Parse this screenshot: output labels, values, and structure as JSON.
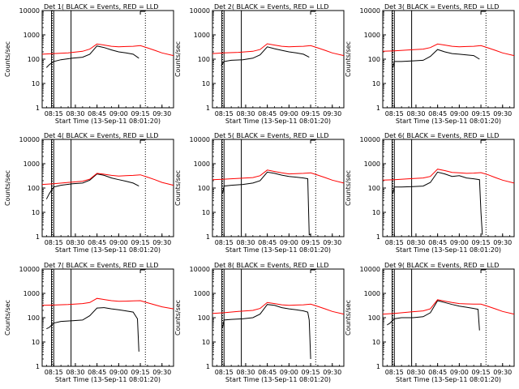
{
  "figure": {
    "ylabel": "Counts/sec",
    "xlabel": "Start Time (13-Sep-11 08:01:20)"
  },
  "colors": {
    "events": "#000000",
    "lld": "#ff0000",
    "axes": "#000000"
  },
  "chart_data": [
    {
      "type": "line",
      "title": "Det 1( BLACK = Events, RED = LLD",
      "xlabel": "Start Time (13-Sep-11 08:01:20)",
      "ylabel": "Counts/sec",
      "y_scale": "log",
      "ylim": [
        1,
        10000
      ],
      "xlim": [
        "08:07",
        "09:38"
      ],
      "x_ticks": [
        "08:15",
        "08:30",
        "08:45",
        "09:00",
        "09:15",
        "09:30"
      ],
      "y_ticks": [
        "1",
        "10",
        "100",
        "1000",
        "10000"
      ],
      "series": [
        {
          "name": "Events",
          "color": "#000000",
          "x": [
            "08:10",
            "08:12",
            "08:15",
            "08:20",
            "08:28",
            "08:35",
            "08:40",
            "08:45",
            "08:50",
            "08:55",
            "09:00",
            "09:05",
            "09:10",
            "09:14"
          ],
          "y": [
            45,
            60,
            80,
            95,
            110,
            120,
            160,
            350,
            300,
            240,
            200,
            180,
            160,
            110
          ]
        },
        {
          "name": "LLD",
          "color": "#ff0000",
          "x": [
            "08:07",
            "08:15",
            "08:25",
            "08:35",
            "08:40",
            "08:45",
            "08:50",
            "08:55",
            "09:00",
            "09:05",
            "09:10",
            "09:15",
            "09:20",
            "09:25",
            "09:30",
            "09:38"
          ],
          "y": [
            160,
            170,
            180,
            210,
            260,
            420,
            380,
            340,
            320,
            330,
            340,
            360,
            290,
            230,
            180,
            140
          ]
        }
      ]
    },
    {
      "type": "line",
      "title": "Det 2( BLACK = Events, RED = LLD",
      "xlabel": "Start Time (13-Sep-11 08:01:20)",
      "ylabel": "Counts/sec",
      "y_scale": "log",
      "ylim": [
        1,
        10000
      ],
      "xlim": [
        "08:07",
        "09:38"
      ],
      "x_ticks": [
        "08:15",
        "08:30",
        "08:45",
        "09:00",
        "09:15",
        "09:30"
      ],
      "y_ticks": [
        "1",
        "10",
        "100",
        "1000",
        "10000"
      ],
      "series": [
        {
          "name": "Events",
          "color": "#000000",
          "x": [
            "08:13",
            "08:15",
            "08:20",
            "08:28",
            "08:35",
            "08:40",
            "08:45",
            "08:50",
            "08:55",
            "09:00",
            "09:05",
            "09:10",
            "09:14"
          ],
          "y": [
            55,
            80,
            90,
            95,
            110,
            150,
            320,
            270,
            230,
            200,
            180,
            160,
            120
          ]
        },
        {
          "name": "LLD",
          "color": "#ff0000",
          "x": [
            "08:07",
            "08:15",
            "08:25",
            "08:35",
            "08:40",
            "08:45",
            "08:50",
            "08:55",
            "09:00",
            "09:05",
            "09:10",
            "09:15",
            "09:20",
            "09:25",
            "09:30",
            "09:38"
          ],
          "y": [
            170,
            180,
            190,
            210,
            250,
            430,
            380,
            340,
            320,
            330,
            340,
            360,
            290,
            230,
            180,
            140
          ]
        }
      ]
    },
    {
      "type": "line",
      "title": "Det 3( BLACK = Events, RED = LLD",
      "xlabel": "Start Time (13-Sep-11 08:01:20)",
      "ylabel": "Counts/sec",
      "y_scale": "log",
      "ylim": [
        1,
        10000
      ],
      "xlim": [
        "08:07",
        "09:38"
      ],
      "x_ticks": [
        "08:15",
        "08:30",
        "08:45",
        "09:00",
        "09:15",
        "09:30"
      ],
      "y_ticks": [
        "1",
        "10",
        "100",
        "1000",
        "10000"
      ],
      "series": [
        {
          "name": "Events",
          "color": "#000000",
          "x": [
            "08:14",
            "08:15",
            "08:20",
            "08:28",
            "08:35",
            "08:40",
            "08:45",
            "08:50",
            "08:55",
            "09:00",
            "09:05",
            "09:10",
            "09:14"
          ],
          "y": [
            45,
            80,
            80,
            85,
            90,
            130,
            250,
            200,
            170,
            160,
            150,
            140,
            100
          ]
        },
        {
          "name": "LLD",
          "color": "#ff0000",
          "x": [
            "08:07",
            "08:15",
            "08:25",
            "08:35",
            "08:40",
            "08:45",
            "08:50",
            "08:55",
            "09:00",
            "09:05",
            "09:10",
            "09:15",
            "09:20",
            "09:25",
            "09:30",
            "09:38"
          ],
          "y": [
            210,
            220,
            240,
            260,
            300,
            420,
            380,
            340,
            320,
            330,
            340,
            360,
            290,
            230,
            180,
            140
          ]
        }
      ]
    },
    {
      "type": "line",
      "title": "Det 4( BLACK = Events, RED = LLD",
      "xlabel": "Start Time (13-Sep-11 08:01:20)",
      "ylabel": "Counts/sec",
      "y_scale": "log",
      "ylim": [
        1,
        10000
      ],
      "xlim": [
        "08:07",
        "09:38"
      ],
      "x_ticks": [
        "08:15",
        "08:30",
        "08:45",
        "09:00",
        "09:15",
        "09:30"
      ],
      "y_ticks": [
        "1",
        "10",
        "100",
        "1000",
        "10000"
      ],
      "series": [
        {
          "name": "Events",
          "color": "#000000",
          "x": [
            "08:10",
            "08:12",
            "08:15",
            "08:20",
            "08:28",
            "08:35",
            "08:40",
            "08:45",
            "08:50",
            "08:55",
            "09:00",
            "09:05",
            "09:10",
            "09:14"
          ],
          "y": [
            35,
            60,
            110,
            130,
            150,
            160,
            210,
            380,
            330,
            260,
            220,
            190,
            160,
            120
          ]
        },
        {
          "name": "LLD",
          "color": "#ff0000",
          "x": [
            "08:07",
            "08:15",
            "08:25",
            "08:35",
            "08:40",
            "08:45",
            "08:50",
            "08:55",
            "09:00",
            "09:05",
            "09:10",
            "09:15",
            "09:20",
            "09:25",
            "09:30",
            "09:38"
          ],
          "y": [
            140,
            150,
            170,
            190,
            230,
            400,
            370,
            330,
            310,
            320,
            330,
            350,
            280,
            220,
            170,
            130
          ]
        }
      ]
    },
    {
      "type": "line",
      "title": "Det 5( BLACK = Events, RED = LLD",
      "xlabel": "Start Time (13-Sep-11 08:01:20)",
      "ylabel": "Counts/sec",
      "y_scale": "log",
      "ylim": [
        1,
        10000
      ],
      "xlim": [
        "08:07",
        "09:38"
      ],
      "x_ticks": [
        "08:15",
        "08:30",
        "08:45",
        "09:00",
        "09:15",
        "09:30"
      ],
      "y_ticks": [
        "1",
        "10",
        "100",
        "1000",
        "10000"
      ],
      "series": [
        {
          "name": "Events",
          "color": "#000000",
          "x": [
            "08:14",
            "08:15",
            "08:20",
            "08:28",
            "08:35",
            "08:40",
            "08:45",
            "08:50",
            "08:55",
            "09:00",
            "09:05",
            "09:10",
            "09:13",
            "09:14",
            "09:15"
          ],
          "y": [
            60,
            120,
            130,
            140,
            160,
            200,
            450,
            400,
            340,
            300,
            280,
            260,
            240,
            1.2,
            1.2
          ]
        },
        {
          "name": "LLD",
          "color": "#ff0000",
          "x": [
            "08:07",
            "08:15",
            "08:25",
            "08:35",
            "08:40",
            "08:45",
            "08:50",
            "08:55",
            "09:00",
            "09:05",
            "09:10",
            "09:15",
            "09:20",
            "09:25",
            "09:30",
            "09:38"
          ],
          "y": [
            220,
            230,
            250,
            270,
            320,
            550,
            480,
            420,
            380,
            390,
            400,
            420,
            340,
            270,
            210,
            160
          ]
        }
      ]
    },
    {
      "type": "line",
      "title": "Det 6( BLACK = Events, RED = LLD",
      "xlabel": "Start Time (13-Sep-11 08:01:20)",
      "ylabel": "Counts/sec",
      "y_scale": "log",
      "ylim": [
        1,
        10000
      ],
      "xlim": [
        "08:07",
        "09:38"
      ],
      "x_ticks": [
        "08:15",
        "08:30",
        "08:45",
        "09:00",
        "09:15",
        "09:30"
      ],
      "y_ticks": [
        "1",
        "10",
        "100",
        "1000",
        "10000"
      ],
      "series": [
        {
          "name": "Events",
          "color": "#000000",
          "x": [
            "08:14",
            "08:15",
            "08:20",
            "08:28",
            "08:35",
            "08:40",
            "08:45",
            "08:50",
            "08:55",
            "09:00",
            "09:05",
            "09:10",
            "09:14",
            "09:15",
            "09:16"
          ],
          "y": [
            60,
            110,
            110,
            115,
            120,
            170,
            450,
            380,
            300,
            320,
            260,
            240,
            220,
            10,
            1.2
          ]
        },
        {
          "name": "LLD",
          "color": "#ff0000",
          "x": [
            "08:07",
            "08:15",
            "08:25",
            "08:35",
            "08:40",
            "08:45",
            "08:50",
            "08:55",
            "09:00",
            "09:05",
            "09:10",
            "09:15",
            "09:20",
            "09:25",
            "09:30",
            "09:38"
          ],
          "y": [
            210,
            220,
            240,
            260,
            300,
            600,
            520,
            440,
            420,
            400,
            410,
            430,
            350,
            270,
            210,
            160
          ]
        }
      ]
    },
    {
      "type": "line",
      "title": "Det 7( BLACK = Events, RED = LLD",
      "xlabel": "Start Time (13-Sep-11 08:01:20)",
      "ylabel": "Counts/sec",
      "y_scale": "log",
      "ylim": [
        1,
        10000
      ],
      "xlim": [
        "08:07",
        "09:38"
      ],
      "x_ticks": [
        "08:15",
        "08:30",
        "08:45",
        "09:00",
        "09:15",
        "09:30"
      ],
      "y_ticks": [
        "1",
        "10",
        "100",
        "1000",
        "10000"
      ],
      "series": [
        {
          "name": "Events",
          "color": "#000000",
          "x": [
            "08:10",
            "08:12",
            "08:15",
            "08:20",
            "08:28",
            "08:35",
            "08:40",
            "08:45",
            "08:50",
            "08:55",
            "09:00",
            "09:05",
            "09:10",
            "09:13",
            "09:14"
          ],
          "y": [
            35,
            40,
            60,
            70,
            75,
            80,
            120,
            250,
            260,
            230,
            210,
            190,
            170,
            90,
            4
          ]
        },
        {
          "name": "LLD",
          "color": "#ff0000",
          "x": [
            "08:07",
            "08:15",
            "08:25",
            "08:35",
            "08:40",
            "08:45",
            "08:50",
            "08:55",
            "09:00",
            "09:05",
            "09:10",
            "09:15",
            "09:20",
            "09:25",
            "09:30",
            "09:38"
          ],
          "y": [
            320,
            330,
            350,
            380,
            420,
            620,
            560,
            500,
            470,
            480,
            490,
            500,
            410,
            340,
            280,
            230
          ]
        }
      ]
    },
    {
      "type": "line",
      "title": "Det 8( BLACK = Events, RED = LLD",
      "xlabel": "Start Time (13-Sep-11 08:01:20)",
      "ylabel": "Counts/sec",
      "y_scale": "log",
      "ylim": [
        1,
        10000
      ],
      "xlim": [
        "08:07",
        "09:38"
      ],
      "x_ticks": [
        "08:15",
        "08:30",
        "08:45",
        "09:00",
        "09:15",
        "09:30"
      ],
      "y_ticks": [
        "1",
        "10",
        "100",
        "1000",
        "10000"
      ],
      "series": [
        {
          "name": "Events",
          "color": "#000000",
          "x": [
            "08:14",
            "08:15",
            "08:20",
            "08:28",
            "08:35",
            "08:40",
            "08:45",
            "08:50",
            "08:55",
            "09:00",
            "09:05",
            "09:10",
            "09:13",
            "09:14",
            "09:15"
          ],
          "y": [
            40,
            80,
            85,
            90,
            100,
            140,
            350,
            320,
            260,
            230,
            210,
            190,
            170,
            80,
            2
          ]
        },
        {
          "name": "LLD",
          "color": "#ff0000",
          "x": [
            "08:07",
            "08:15",
            "08:25",
            "08:35",
            "08:40",
            "08:45",
            "08:50",
            "08:55",
            "09:00",
            "09:05",
            "09:10",
            "09:15",
            "09:20",
            "09:25",
            "09:30",
            "09:38"
          ],
          "y": [
            150,
            160,
            180,
            200,
            240,
            420,
            380,
            340,
            320,
            330,
            340,
            360,
            290,
            230,
            180,
            140
          ]
        }
      ]
    },
    {
      "type": "line",
      "title": "Det 9( BLACK = Events, RED = LLD",
      "xlabel": "Start Time (13-Sep-11 08:01:20)",
      "ylabel": "Counts/sec",
      "y_scale": "log",
      "ylim": [
        1,
        10000
      ],
      "xlim": [
        "08:07",
        "09:38"
      ],
      "x_ticks": [
        "08:15",
        "08:30",
        "08:45",
        "09:00",
        "09:15",
        "09:30"
      ],
      "y_ticks": [
        "1",
        "10",
        "100",
        "1000",
        "10000"
      ],
      "series": [
        {
          "name": "Events",
          "color": "#000000",
          "x": [
            "08:10",
            "08:12",
            "08:15",
            "08:20",
            "08:28",
            "08:35",
            "08:40",
            "08:45",
            "08:50",
            "08:55",
            "09:00",
            "09:05",
            "09:10",
            "09:13",
            "09:14"
          ],
          "y": [
            50,
            60,
            90,
            100,
            100,
            110,
            160,
            500,
            420,
            350,
            300,
            270,
            240,
            220,
            30
          ]
        },
        {
          "name": "LLD",
          "color": "#ff0000",
          "x": [
            "08:07",
            "08:15",
            "08:25",
            "08:35",
            "08:40",
            "08:45",
            "08:50",
            "08:55",
            "09:00",
            "09:05",
            "09:10",
            "09:15",
            "09:20",
            "09:25",
            "09:30",
            "09:38"
          ],
          "y": [
            140,
            150,
            170,
            190,
            230,
            550,
            480,
            420,
            380,
            370,
            360,
            360,
            290,
            230,
            180,
            140
          ]
        }
      ]
    }
  ]
}
